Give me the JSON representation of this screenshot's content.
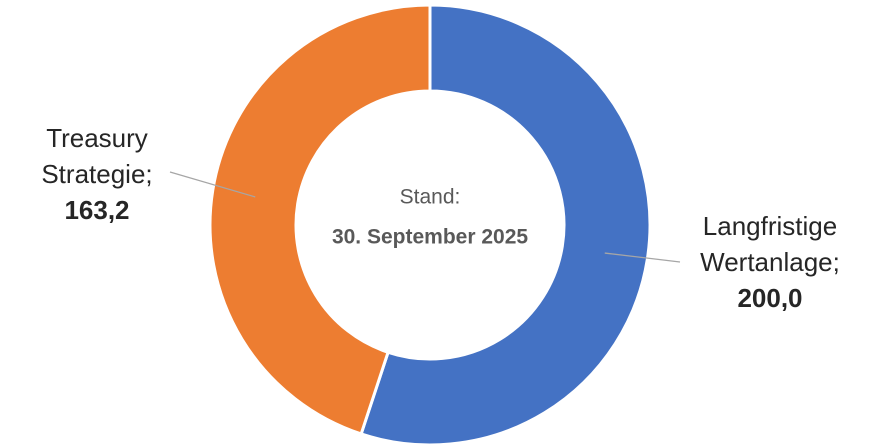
{
  "chart_data": {
    "type": "donut",
    "categories": [
      "Langfristige Wertanlage",
      "Treasury Strategie"
    ],
    "values": [
      200.0,
      163.2
    ],
    "value_labels": [
      "200,0",
      "163,2"
    ],
    "label_separator": ";",
    "colors": [
      "#4472c4",
      "#ed7d31"
    ],
    "center_text": [
      "Stand:",
      "30. September 2025"
    ]
  }
}
